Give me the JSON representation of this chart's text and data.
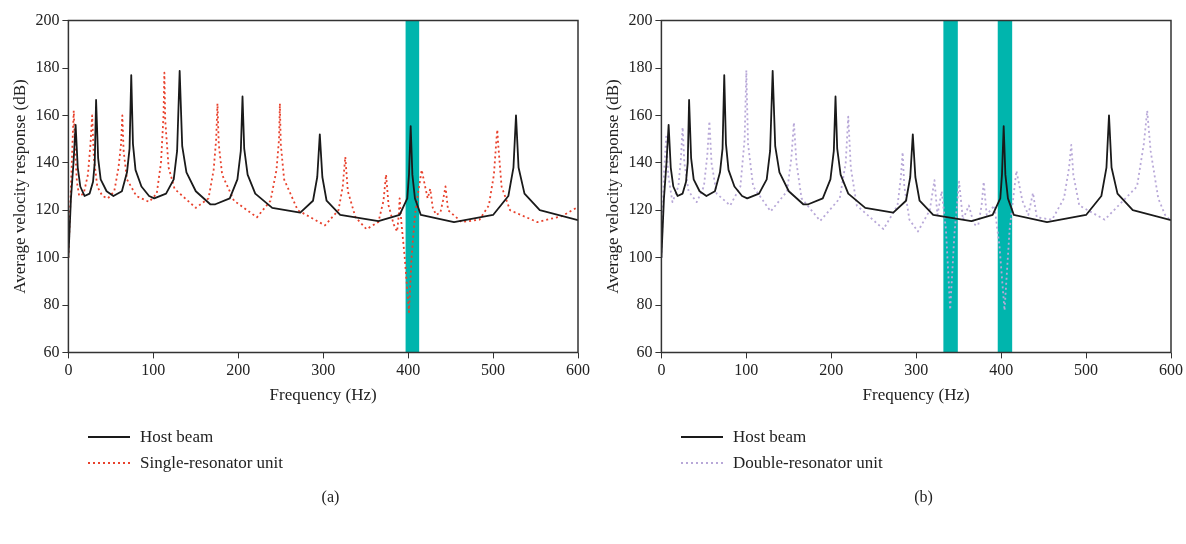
{
  "chart_data": [
    {
      "type": "line",
      "xlabel": "Frequency (Hz)",
      "ylabel": "Average velocity response (dB)",
      "xlim": [
        0,
        600
      ],
      "xticks": [
        0,
        100,
        200,
        300,
        400,
        500,
        600
      ],
      "ylim": [
        60,
        200
      ],
      "yticks": [
        60,
        80,
        100,
        120,
        140,
        160,
        180,
        200
      ],
      "grid": false,
      "legend": "bottom",
      "marker": "none",
      "annotations": [
        "(a)"
      ],
      "bands": [
        {
          "axis": "x",
          "from": 397,
          "to": 413,
          "color": "#00b5ad"
        }
      ],
      "series": [
        {
          "name": "Host beam",
          "color": "#1a1a1a",
          "line_style": "solid",
          "x": [
            0,
            3,
            6,
            8.5,
            11,
            14,
            19,
            25,
            29,
            31,
            32.6,
            35,
            38,
            45,
            53,
            63,
            69,
            72,
            74,
            76,
            79,
            86,
            95,
            101,
            115,
            124,
            128,
            131,
            134,
            139,
            150,
            167,
            173,
            190,
            199,
            203,
            205,
            207,
            211,
            220,
            240,
            273,
            288,
            293,
            296,
            299,
            304,
            320,
            365,
            390,
            399,
            401,
            403,
            405,
            408,
            415,
            454,
            500,
            518,
            524,
            527,
            530,
            537,
            555,
            600
          ],
          "values": [
            100,
            125,
            140,
            156,
            138,
            130,
            126,
            127,
            132,
            140,
            166.5,
            142,
            133,
            128,
            126,
            128,
            136,
            146,
            177,
            148,
            137,
            130,
            126,
            125,
            127,
            133,
            145,
            178.8,
            147,
            136,
            128,
            122.5,
            122.5,
            125,
            133,
            145,
            168,
            146,
            135,
            127,
            121,
            119,
            124,
            134,
            152,
            134,
            124,
            118,
            115.4,
            118,
            125,
            135,
            155.5,
            135,
            125,
            118,
            115,
            118,
            126,
            138,
            160,
            138,
            127,
            120,
            115.8
          ]
        },
        {
          "name": "Single-resonator unit",
          "color": "#e8412c",
          "line_style": "dotted",
          "x": [
            0,
            3,
            5,
            6.3,
            8,
            10,
            12.7,
            18,
            23,
            26,
            28,
            30,
            34,
            40,
            46.5,
            54,
            59,
            62,
            63.5,
            65,
            69,
            80,
            95,
            104,
            109,
            112,
            113,
            114,
            118,
            125,
            150,
            165,
            171,
            174,
            175.5,
            177,
            181,
            195,
            222,
            238,
            245,
            248,
            249,
            250,
            254,
            270,
            302,
            318,
            323,
            326,
            329,
            338,
            351,
            365,
            371,
            374,
            377,
            383,
            387,
            389,
            390,
            392,
            396,
            401,
            404,
            408,
            412,
            416,
            420,
            423,
            426,
            429,
            433,
            438,
            441,
            444,
            447,
            463,
            484,
            495,
            501,
            504,
            505,
            506,
            510,
            520,
            552,
            581,
            600
          ],
          "values": [
            100,
            130,
            150,
            162,
            145,
            132,
            126,
            127,
            135,
            148,
            160,
            142,
            130,
            126,
            125,
            128,
            138,
            148,
            160,
            145,
            133,
            126,
            123.5,
            127,
            140,
            160,
            178,
            158,
            138,
            129,
            121,
            125,
            137,
            150,
            165,
            148,
            135,
            124,
            117,
            124,
            137,
            150,
            165,
            148,
            133,
            120,
            113.6,
            120,
            130,
            142.5,
            128,
            117,
            112,
            115,
            124,
            135,
            122,
            114,
            111,
            118,
            125,
            115,
            100,
            77,
            100,
            118,
            128,
            137,
            130,
            125,
            129,
            121,
            118,
            119,
            124,
            130,
            120,
            115,
            116,
            122,
            135,
            150,
            154,
            148,
            130,
            120,
            115,
            117.5,
            121.4
          ]
        }
      ]
    },
    {
      "type": "line",
      "xlabel": "Frequency (Hz)",
      "ylabel": "Average velocity response (dB)",
      "xlim": [
        0,
        600
      ],
      "xticks": [
        0,
        100,
        200,
        300,
        400,
        500,
        600
      ],
      "ylim": [
        60,
        200
      ],
      "yticks": [
        60,
        80,
        100,
        120,
        140,
        160,
        180,
        200
      ],
      "grid": false,
      "legend": "bottom",
      "marker": "none",
      "annotations": [
        "(b)"
      ],
      "bands": [
        {
          "axis": "x",
          "from": 332,
          "to": 349,
          "color": "#00b5ad"
        },
        {
          "axis": "x",
          "from": 396,
          "to": 413,
          "color": "#00b5ad"
        }
      ],
      "series": [
        {
          "name": "Host beam",
          "color": "#1a1a1a",
          "line_style": "solid",
          "x": [
            0,
            3,
            6,
            8.5,
            11,
            14,
            19,
            25,
            29,
            31,
            32.6,
            35,
            38,
            45,
            53,
            63,
            69,
            72,
            74,
            76,
            79,
            86,
            95,
            101,
            115,
            124,
            128,
            131,
            134,
            139,
            150,
            167,
            173,
            190,
            199,
            203,
            205,
            207,
            211,
            220,
            240,
            273,
            288,
            293,
            296,
            299,
            304,
            320,
            365,
            390,
            399,
            401,
            403,
            405,
            408,
            415,
            454,
            500,
            518,
            524,
            527,
            530,
            537,
            555,
            600
          ],
          "values": [
            100,
            125,
            140,
            156,
            138,
            130,
            126,
            127,
            132,
            140,
            166.5,
            142,
            133,
            128,
            126,
            128,
            136,
            146,
            177,
            148,
            137,
            130,
            126,
            125,
            127,
            133,
            145,
            178.8,
            147,
            136,
            128,
            122.5,
            122.5,
            125,
            133,
            145,
            168,
            146,
            135,
            127,
            121,
            119,
            124,
            134,
            152,
            134,
            124,
            118,
            115.4,
            118,
            125,
            135,
            155.5,
            135,
            125,
            118,
            115,
            118,
            126,
            138,
            160,
            138,
            127,
            120,
            115.8
          ]
        },
        {
          "name": "Double-resonator unit",
          "color": "#b8a8d8",
          "line_style": "dotted",
          "x": [
            0,
            3,
            5.6,
            8,
            13,
            20,
            23,
            25,
            27,
            32,
            41.6,
            50,
            54,
            56.5,
            59,
            65,
            81,
            93,
            98,
            100,
            102,
            108,
            128.6,
            148,
            153,
            156,
            159,
            165,
            187,
            210,
            217,
            220,
            223,
            230,
            261.5,
            278,
            282,
            284,
            286,
            292,
            302,
            316,
            321.5,
            325,
            330,
            335,
            340,
            345,
            350.5,
            355,
            362,
            368,
            373,
            377,
            379.5,
            383,
            392,
            398,
            404,
            410,
            418,
            425,
            432,
            437.5,
            442,
            460,
            474,
            480,
            482.6,
            485,
            492,
            522,
            560,
            568,
            572,
            576,
            585,
            593,
            600
          ],
          "values": [
            100,
            135,
            151,
            135,
            123.4,
            130,
            142,
            155,
            140,
            128,
            123.4,
            130,
            143,
            157.5,
            140,
            127,
            122,
            130,
            150,
            179,
            148,
            130,
            119.5,
            128,
            142,
            157,
            140,
            125,
            115.5,
            125,
            140,
            159.5,
            138,
            122,
            112,
            122,
            134,
            144.5,
            130,
            116,
            111,
            120,
            132.7,
            118,
            128,
            112,
            78,
            110,
            132,
            116,
            122,
            114,
            113.6,
            122,
            132,
            118,
            122,
            105,
            77.7,
            112,
            136.6,
            124,
            118,
            127.3,
            117,
            116,
            125,
            138,
            147.6,
            135,
            122,
            116,
            130,
            148,
            162,
            145,
            125,
            118,
            115.5
          ]
        }
      ]
    }
  ]
}
